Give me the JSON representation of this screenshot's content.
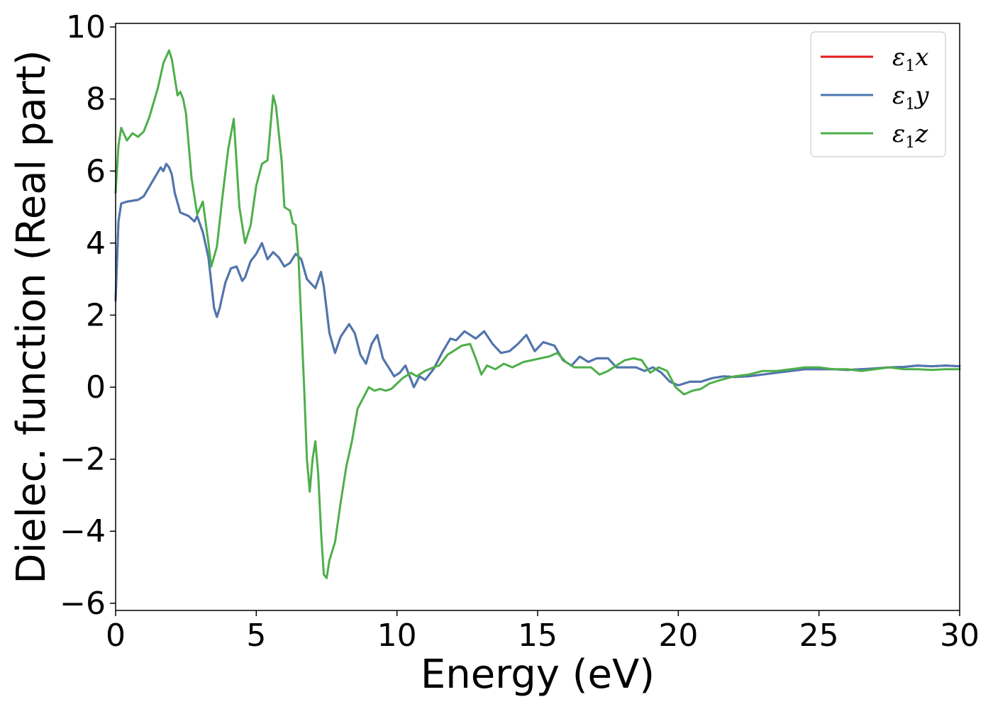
{
  "chart_data": {
    "type": "line",
    "xlabel": "Energy (eV)",
    "ylabel": "Dielec. function (Real part)",
    "xlim": [
      0,
      30
    ],
    "ylim": [
      -6.2,
      10.1
    ],
    "xticks": [
      0,
      5,
      10,
      15,
      20,
      25,
      30
    ],
    "xtick_labels": [
      "0",
      "5",
      "10",
      "15",
      "20",
      "25",
      "30"
    ],
    "yticks": [
      -6,
      -4,
      -2,
      0,
      2,
      4,
      6,
      8,
      10
    ],
    "ytick_labels": [
      "−6",
      "−4",
      "−2",
      "0",
      "2",
      "4",
      "6",
      "8",
      "10"
    ],
    "grid": false,
    "legend_position": "top-right",
    "series": [
      {
        "name": "ε1x",
        "legend_main": "ε",
        "legend_sub": "1",
        "legend_var": "x",
        "color": "#e41a1c",
        "same_as": "ε1y"
      },
      {
        "name": "ε1y",
        "legend_main": "ε",
        "legend_sub": "1",
        "legend_var": "y",
        "color": "#4a78b2",
        "points": [
          [
            0.0,
            2.4
          ],
          [
            0.1,
            4.6
          ],
          [
            0.2,
            5.1
          ],
          [
            0.4,
            5.15
          ],
          [
            0.8,
            5.2
          ],
          [
            1.0,
            5.3
          ],
          [
            1.3,
            5.7
          ],
          [
            1.6,
            6.1
          ],
          [
            1.7,
            6.0
          ],
          [
            1.8,
            6.2
          ],
          [
            1.9,
            6.1
          ],
          [
            2.0,
            5.9
          ],
          [
            2.1,
            5.4
          ],
          [
            2.3,
            4.85
          ],
          [
            2.6,
            4.75
          ],
          [
            2.8,
            4.6
          ],
          [
            2.9,
            4.75
          ],
          [
            3.1,
            4.3
          ],
          [
            3.3,
            3.6
          ],
          [
            3.5,
            2.2
          ],
          [
            3.6,
            1.95
          ],
          [
            3.7,
            2.2
          ],
          [
            3.9,
            2.9
          ],
          [
            4.1,
            3.3
          ],
          [
            4.3,
            3.35
          ],
          [
            4.5,
            2.95
          ],
          [
            4.6,
            3.05
          ],
          [
            4.8,
            3.5
          ],
          [
            5.0,
            3.7
          ],
          [
            5.2,
            4.0
          ],
          [
            5.4,
            3.55
          ],
          [
            5.6,
            3.75
          ],
          [
            5.8,
            3.6
          ],
          [
            6.0,
            3.35
          ],
          [
            6.2,
            3.45
          ],
          [
            6.4,
            3.7
          ],
          [
            6.6,
            3.55
          ],
          [
            6.8,
            3.0
          ],
          [
            7.1,
            2.75
          ],
          [
            7.3,
            3.2
          ],
          [
            7.4,
            2.8
          ],
          [
            7.6,
            1.5
          ],
          [
            7.8,
            0.95
          ],
          [
            8.0,
            1.4
          ],
          [
            8.3,
            1.75
          ],
          [
            8.5,
            1.5
          ],
          [
            8.7,
            0.9
          ],
          [
            8.9,
            0.65
          ],
          [
            9.1,
            1.2
          ],
          [
            9.3,
            1.45
          ],
          [
            9.5,
            0.8
          ],
          [
            9.7,
            0.55
          ],
          [
            9.9,
            0.3
          ],
          [
            10.1,
            0.4
          ],
          [
            10.3,
            0.6
          ],
          [
            10.6,
            0.0
          ],
          [
            10.8,
            0.3
          ],
          [
            11.0,
            0.2
          ],
          [
            11.3,
            0.5
          ],
          [
            11.6,
            0.95
          ],
          [
            11.9,
            1.35
          ],
          [
            12.1,
            1.3
          ],
          [
            12.4,
            1.55
          ],
          [
            12.8,
            1.35
          ],
          [
            13.1,
            1.55
          ],
          [
            13.4,
            1.2
          ],
          [
            13.7,
            0.95
          ],
          [
            14.0,
            1.0
          ],
          [
            14.3,
            1.2
          ],
          [
            14.6,
            1.45
          ],
          [
            14.9,
            1.0
          ],
          [
            15.2,
            1.25
          ],
          [
            15.6,
            1.15
          ],
          [
            15.9,
            0.75
          ],
          [
            16.2,
            0.6
          ],
          [
            16.5,
            0.85
          ],
          [
            16.8,
            0.7
          ],
          [
            17.1,
            0.8
          ],
          [
            17.5,
            0.8
          ],
          [
            17.8,
            0.55
          ],
          [
            18.1,
            0.55
          ],
          [
            18.5,
            0.55
          ],
          [
            18.8,
            0.45
          ],
          [
            19.1,
            0.55
          ],
          [
            19.4,
            0.4
          ],
          [
            19.7,
            0.15
          ],
          [
            20.0,
            0.05
          ],
          [
            20.4,
            0.15
          ],
          [
            20.8,
            0.15
          ],
          [
            21.2,
            0.25
          ],
          [
            21.6,
            0.3
          ],
          [
            22.0,
            0.28
          ],
          [
            22.5,
            0.3
          ],
          [
            23.0,
            0.35
          ],
          [
            23.5,
            0.4
          ],
          [
            24.0,
            0.45
          ],
          [
            24.5,
            0.5
          ],
          [
            25.0,
            0.5
          ],
          [
            25.5,
            0.5
          ],
          [
            26.0,
            0.48
          ],
          [
            26.5,
            0.5
          ],
          [
            27.0,
            0.52
          ],
          [
            27.5,
            0.55
          ],
          [
            28.0,
            0.56
          ],
          [
            28.5,
            0.6
          ],
          [
            29.0,
            0.58
          ],
          [
            29.5,
            0.6
          ],
          [
            30.0,
            0.58
          ]
        ]
      },
      {
        "name": "ε1z",
        "legend_main": "ε",
        "legend_sub": "1",
        "legend_var": "z",
        "color": "#4daf4a",
        "points": [
          [
            0.0,
            5.4
          ],
          [
            0.1,
            6.7
          ],
          [
            0.2,
            7.2
          ],
          [
            0.4,
            6.85
          ],
          [
            0.6,
            7.05
          ],
          [
            0.8,
            6.95
          ],
          [
            1.0,
            7.1
          ],
          [
            1.2,
            7.5
          ],
          [
            1.5,
            8.3
          ],
          [
            1.7,
            9.0
          ],
          [
            1.9,
            9.35
          ],
          [
            2.0,
            9.1
          ],
          [
            2.2,
            8.1
          ],
          [
            2.3,
            8.2
          ],
          [
            2.4,
            8.0
          ],
          [
            2.5,
            7.6
          ],
          [
            2.7,
            5.8
          ],
          [
            2.9,
            4.8
          ],
          [
            3.1,
            5.15
          ],
          [
            3.3,
            4.0
          ],
          [
            3.4,
            3.35
          ],
          [
            3.6,
            3.9
          ],
          [
            3.8,
            5.3
          ],
          [
            4.0,
            6.6
          ],
          [
            4.2,
            7.45
          ],
          [
            4.3,
            6.2
          ],
          [
            4.4,
            5.0
          ],
          [
            4.6,
            4.0
          ],
          [
            4.8,
            4.5
          ],
          [
            5.0,
            5.6
          ],
          [
            5.2,
            6.2
          ],
          [
            5.4,
            6.3
          ],
          [
            5.6,
            8.1
          ],
          [
            5.7,
            7.8
          ],
          [
            5.9,
            6.3
          ],
          [
            6.0,
            5.0
          ],
          [
            6.2,
            4.9
          ],
          [
            6.3,
            4.55
          ],
          [
            6.4,
            4.5
          ],
          [
            6.5,
            3.6
          ],
          [
            6.6,
            1.8
          ],
          [
            6.7,
            0.0
          ],
          [
            6.8,
            -2.0
          ],
          [
            6.9,
            -2.9
          ],
          [
            7.0,
            -2.0
          ],
          [
            7.1,
            -1.5
          ],
          [
            7.2,
            -2.4
          ],
          [
            7.3,
            -4.0
          ],
          [
            7.4,
            -5.2
          ],
          [
            7.5,
            -5.3
          ],
          [
            7.6,
            -4.8
          ],
          [
            7.8,
            -4.3
          ],
          [
            8.0,
            -3.2
          ],
          [
            8.2,
            -2.2
          ],
          [
            8.4,
            -1.5
          ],
          [
            8.6,
            -0.6
          ],
          [
            8.8,
            -0.3
          ],
          [
            9.0,
            0.0
          ],
          [
            9.2,
            -0.1
          ],
          [
            9.4,
            -0.05
          ],
          [
            9.6,
            -0.1
          ],
          [
            9.8,
            -0.05
          ],
          [
            10.0,
            0.1
          ],
          [
            10.2,
            0.25
          ],
          [
            10.5,
            0.4
          ],
          [
            10.7,
            0.3
          ],
          [
            11.0,
            0.45
          ],
          [
            11.3,
            0.55
          ],
          [
            11.5,
            0.6
          ],
          [
            11.8,
            0.9
          ],
          [
            12.0,
            1.0
          ],
          [
            12.3,
            1.15
          ],
          [
            12.6,
            1.2
          ],
          [
            12.8,
            0.8
          ],
          [
            13.0,
            0.35
          ],
          [
            13.2,
            0.6
          ],
          [
            13.5,
            0.5
          ],
          [
            13.8,
            0.65
          ],
          [
            14.1,
            0.55
          ],
          [
            14.5,
            0.7
          ],
          [
            14.8,
            0.75
          ],
          [
            15.1,
            0.8
          ],
          [
            15.4,
            0.85
          ],
          [
            15.7,
            0.95
          ],
          [
            16.0,
            0.7
          ],
          [
            16.3,
            0.55
          ],
          [
            16.6,
            0.55
          ],
          [
            16.9,
            0.55
          ],
          [
            17.2,
            0.35
          ],
          [
            17.5,
            0.45
          ],
          [
            17.8,
            0.6
          ],
          [
            18.1,
            0.75
          ],
          [
            18.4,
            0.8
          ],
          [
            18.7,
            0.75
          ],
          [
            19.0,
            0.4
          ],
          [
            19.3,
            0.55
          ],
          [
            19.6,
            0.45
          ],
          [
            19.9,
            0.0
          ],
          [
            20.2,
            -0.2
          ],
          [
            20.5,
            -0.1
          ],
          [
            20.8,
            -0.05
          ],
          [
            21.1,
            0.1
          ],
          [
            21.5,
            0.2
          ],
          [
            22.0,
            0.3
          ],
          [
            22.5,
            0.35
          ],
          [
            23.0,
            0.45
          ],
          [
            23.5,
            0.45
          ],
          [
            24.0,
            0.5
          ],
          [
            24.5,
            0.55
          ],
          [
            25.0,
            0.55
          ],
          [
            25.5,
            0.5
          ],
          [
            26.0,
            0.5
          ],
          [
            26.5,
            0.45
          ],
          [
            27.0,
            0.5
          ],
          [
            27.5,
            0.55
          ],
          [
            28.0,
            0.5
          ],
          [
            28.5,
            0.5
          ],
          [
            29.0,
            0.48
          ],
          [
            29.5,
            0.5
          ],
          [
            30.0,
            0.5
          ]
        ]
      }
    ]
  }
}
